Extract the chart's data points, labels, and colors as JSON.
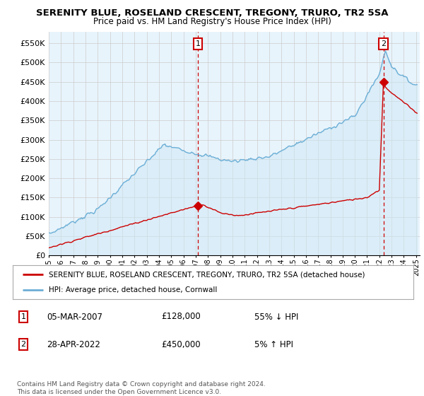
{
  "title": "SERENITY BLUE, ROSELAND CRESCENT, TREGONY, TRURO, TR2 5SA",
  "subtitle": "Price paid vs. HM Land Registry's House Price Index (HPI)",
  "legend_line1": "SERENITY BLUE, ROSELAND CRESCENT, TREGONY, TRURO, TR2 5SA (detached house)",
  "legend_line2": "HPI: Average price, detached house, Cornwall",
  "footer1": "Contains HM Land Registry data © Crown copyright and database right 2024.",
  "footer2": "This data is licensed under the Open Government Licence v3.0.",
  "table_row1": [
    "1",
    "05-MAR-2007",
    "£128,000",
    "55% ↓ HPI"
  ],
  "table_row2": [
    "2",
    "28-APR-2022",
    "£450,000",
    "5% ↑ HPI"
  ],
  "ylim": [
    0,
    580000
  ],
  "yticks": [
    0,
    50000,
    100000,
    150000,
    200000,
    250000,
    300000,
    350000,
    400000,
    450000,
    500000,
    550000
  ],
  "ytick_labels": [
    "£0",
    "£50K",
    "£100K",
    "£150K",
    "£200K",
    "£250K",
    "£300K",
    "£350K",
    "£400K",
    "£450K",
    "£500K",
    "£550K"
  ],
  "hpi_color": "#6baed6",
  "hpi_fill": "#d6e9f8",
  "price_color": "#cc0000",
  "marker1_year": 2007.17,
  "marker1_price": 128000,
  "marker2_year": 2022.33,
  "marker2_price": 450000,
  "annotation_color": "#cc0000",
  "bg_color": "#ffffff",
  "grid_color": "#cccccc",
  "xlim_left": 1995.0,
  "xlim_right": 2025.3
}
